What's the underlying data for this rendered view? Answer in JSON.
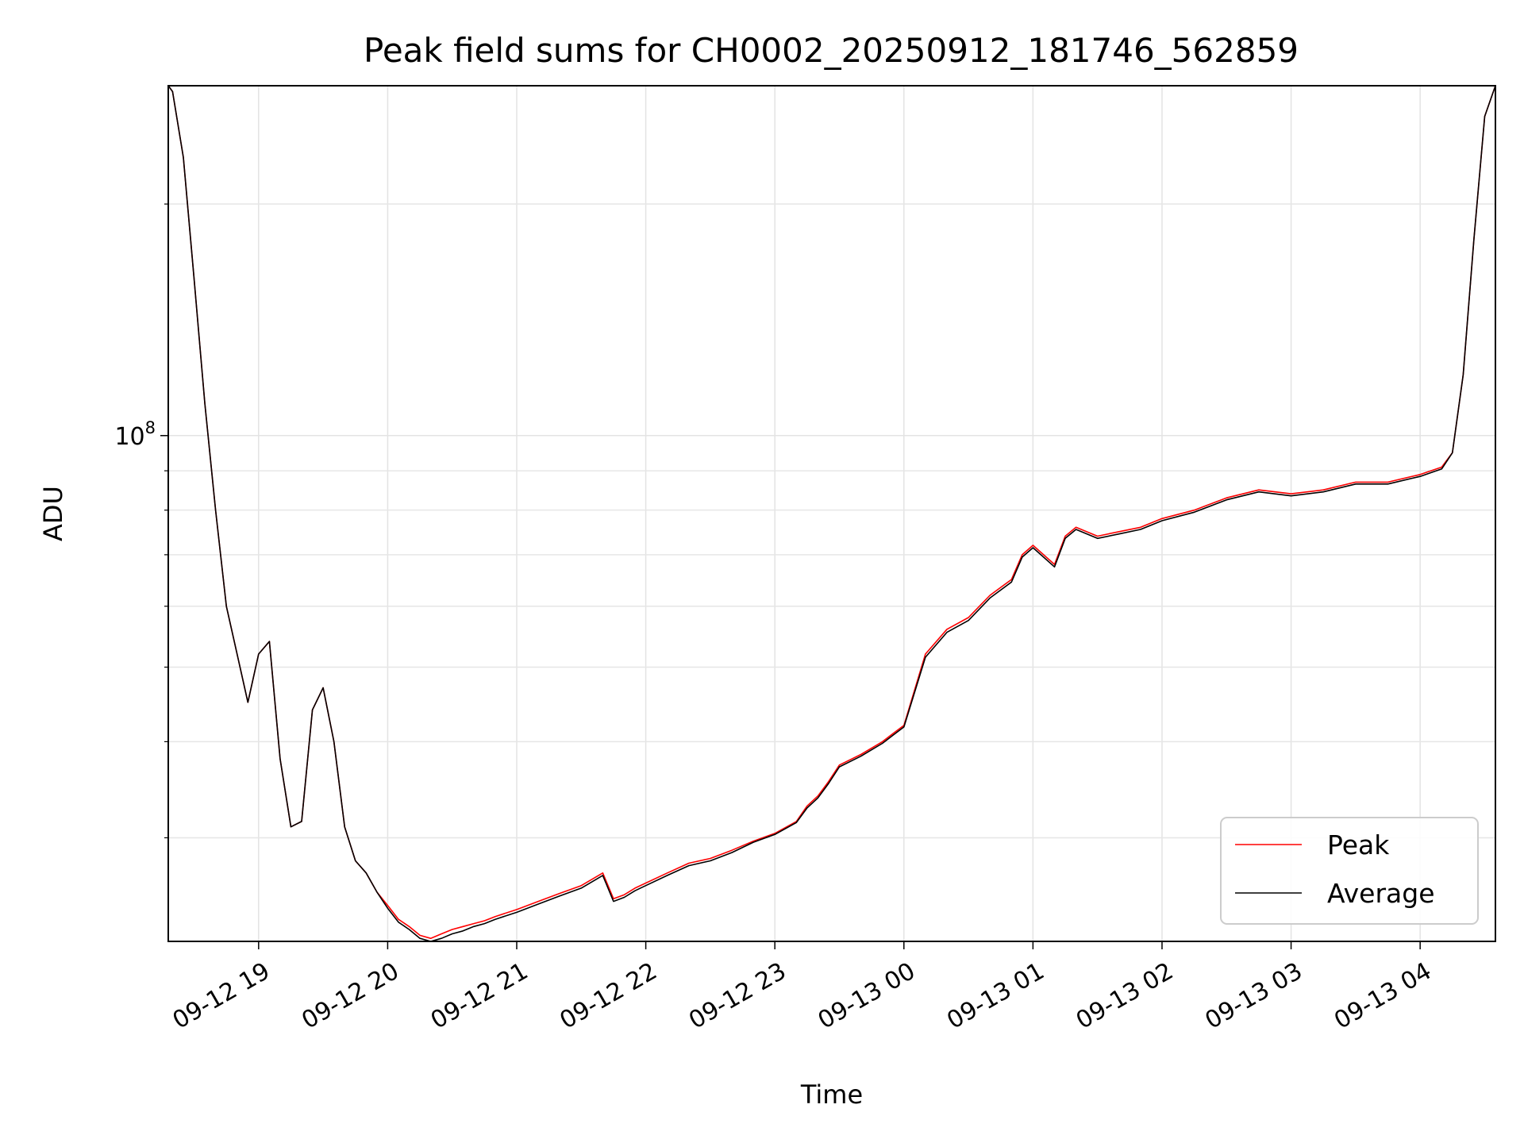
{
  "chart_data": {
    "type": "line",
    "title": "Peak field sums for CH0002_20250912_181746_562859",
    "xlabel": "Time",
    "ylabel": "ADU",
    "yscale": "log",
    "xlim": [
      "09-12 18:18",
      "09-13 04:35"
    ],
    "ylim": [
      22000000,
      285000000
    ],
    "x_ticks": [
      "09-12 19",
      "09-12 20",
      "09-12 21",
      "09-12 22",
      "09-12 23",
      "09-13 00",
      "09-13 01",
      "09-13 02",
      "09-13 03",
      "09-13 04"
    ],
    "y_major_tick": {
      "value": 100000000,
      "base": "10",
      "exponent": "8"
    },
    "y_minor_ticks": [
      30000000,
      40000000,
      50000000,
      60000000,
      70000000,
      80000000,
      90000000,
      200000000
    ],
    "grid": true,
    "legend_position": "lower-right",
    "colors": {
      "Peak": "#ff0000",
      "Average": "#000000"
    },
    "x": [
      "09-12 18:18",
      "09-12 18:20",
      "09-12 18:25",
      "09-12 18:30",
      "09-12 18:35",
      "09-12 18:40",
      "09-12 18:45",
      "09-12 18:50",
      "09-12 18:55",
      "09-12 19:00",
      "09-12 19:05",
      "09-12 19:10",
      "09-12 19:15",
      "09-12 19:20",
      "09-12 19:25",
      "09-12 19:30",
      "09-12 19:35",
      "09-12 19:40",
      "09-12 19:45",
      "09-12 19:50",
      "09-12 19:55",
      "09-12 20:00",
      "09-12 20:05",
      "09-12 20:10",
      "09-12 20:15",
      "09-12 20:20",
      "09-12 20:25",
      "09-12 20:30",
      "09-12 20:35",
      "09-12 20:40",
      "09-12 20:45",
      "09-12 20:50",
      "09-12 21:00",
      "09-12 21:10",
      "09-12 21:20",
      "09-12 21:30",
      "09-12 21:40",
      "09-12 21:45",
      "09-12 21:50",
      "09-12 21:55",
      "09-12 22:00",
      "09-12 22:10",
      "09-12 22:20",
      "09-12 22:30",
      "09-12 22:40",
      "09-12 22:50",
      "09-12 23:00",
      "09-12 23:10",
      "09-12 23:15",
      "09-12 23:20",
      "09-12 23:25",
      "09-12 23:30",
      "09-12 23:40",
      "09-12 23:50",
      "09-12 23:55",
      "09-13 00:00",
      "09-13 00:10",
      "09-13 00:20",
      "09-13 00:30",
      "09-13 00:40",
      "09-13 00:50",
      "09-13 00:55",
      "09-13 01:00",
      "09-13 01:10",
      "09-13 01:15",
      "09-13 01:20",
      "09-13 01:30",
      "09-13 01:40",
      "09-13 01:50",
      "09-13 02:00",
      "09-13 02:15",
      "09-13 02:30",
      "09-13 02:45",
      "09-13 03:00",
      "09-13 03:15",
      "09-13 03:30",
      "09-13 03:45",
      "09-13 04:00",
      "09-13 04:05",
      "09-13 04:10",
      "09-13 04:15",
      "09-13 04:20",
      "09-13 04:25",
      "09-13 04:30",
      "09-13 04:35"
    ],
    "series": [
      {
        "name": "Peak",
        "values": [
          285000000,
          280000000,
          230000000,
          160000000,
          110000000,
          80000000,
          60000000,
          52000000,
          45000000,
          52000000,
          54000000,
          38000000,
          31000000,
          31500000,
          44000000,
          47000000,
          40000000,
          31000000,
          28000000,
          27000000,
          25500000,
          24500000,
          23500000,
          23000000,
          22400000,
          22200000,
          22500000,
          22800000,
          23000000,
          23200000,
          23400000,
          23700000,
          24200000,
          24800000,
          25400000,
          26000000,
          27000000,
          25000000,
          25300000,
          25800000,
          26200000,
          27000000,
          27800000,
          28200000,
          28900000,
          29700000,
          30400000,
          31500000,
          33000000,
          34000000,
          35500000,
          37300000,
          38500000,
          40000000,
          41000000,
          42000000,
          52000000,
          56000000,
          58000000,
          62000000,
          65000000,
          70000000,
          72000000,
          68000000,
          74000000,
          76000000,
          74000000,
          75000000,
          76000000,
          78000000,
          80000000,
          83000000,
          85000000,
          84000000,
          85000000,
          87000000,
          87000000,
          89000000,
          90000000,
          91000000,
          95000000,
          120000000,
          180000000,
          260000000,
          285000000
        ]
      },
      {
        "name": "Average",
        "values": [
          285000000,
          280000000,
          230000000,
          160000000,
          110000000,
          80000000,
          60000000,
          52000000,
          45000000,
          52000000,
          54000000,
          38000000,
          31000000,
          31500000,
          44000000,
          47000000,
          40000000,
          31000000,
          28000000,
          27000000,
          25500000,
          24300000,
          23300000,
          22800000,
          22200000,
          22000000,
          22200000,
          22500000,
          22700000,
          23000000,
          23200000,
          23500000,
          24000000,
          24600000,
          25200000,
          25800000,
          26800000,
          24800000,
          25100000,
          25600000,
          26000000,
          26800000,
          27600000,
          28000000,
          28700000,
          29600000,
          30300000,
          31400000,
          32800000,
          33800000,
          35300000,
          37100000,
          38300000,
          39800000,
          40800000,
          41800000,
          51500000,
          55500000,
          57500000,
          61500000,
          64500000,
          69500000,
          71500000,
          67500000,
          73500000,
          75500000,
          73500000,
          74500000,
          75500000,
          77500000,
          79500000,
          82500000,
          84500000,
          83500000,
          84500000,
          86500000,
          86500000,
          88500000,
          89500000,
          90500000,
          95000000,
          120000000,
          180000000,
          260000000,
          285000000
        ]
      }
    ]
  }
}
